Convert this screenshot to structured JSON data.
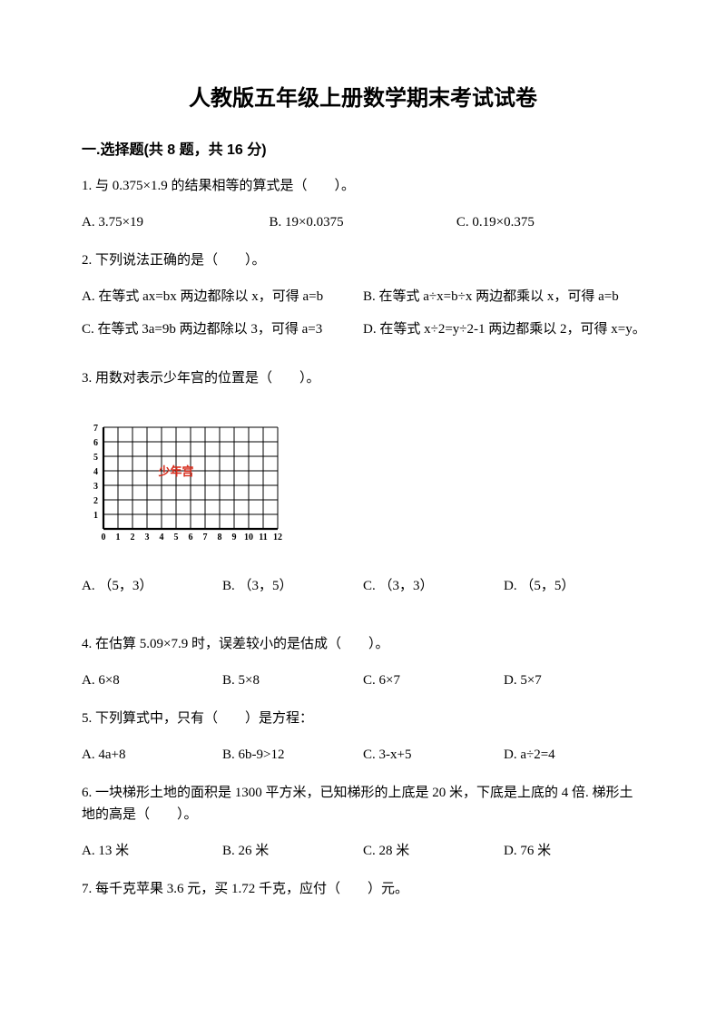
{
  "title": "人教版五年级上册数学期末考试试卷",
  "section1": {
    "heading": "一.选择题(共 8 题，共 16 分)",
    "q1": {
      "text": "1. 与 0.375×1.9 的结果相等的算式是（　　）。",
      "a": "A. 3.75×19",
      "b": "B. 19×0.0375",
      "c": "C. 0.19×0.375"
    },
    "q2": {
      "text": "2. 下列说法正确的是（　　）。",
      "a": "A. 在等式 ax=bx 两边都除以 x，可得 a=b",
      "b": "B. 在等式 a÷x=b÷x 两边都乘以 x，可得 a=b",
      "c": "C. 在等式 3a=9b 两边都除以 3，可得 a=3",
      "d": "D. 在等式 x÷2=y÷2-1 两边都乘以 2，可得 x=y。"
    },
    "q3": {
      "text": "3. 用数对表示少年宫的位置是（　　）。",
      "grid": {
        "x_ticks": [
          0,
          1,
          2,
          3,
          4,
          5,
          6,
          7,
          8,
          9,
          10,
          11,
          12
        ],
        "y_ticks": [
          1,
          2,
          3,
          4,
          5,
          6,
          7
        ],
        "cell": 16,
        "width_cells": 12,
        "height_cells": 7,
        "origin_x": 24,
        "label_text": "少年宫",
        "label_color": "#d62a1a",
        "label_cell_x": 5,
        "label_cell_y": 4,
        "axis_color": "#000000",
        "grid_color": "#000000",
        "tick_font_size": 10
      },
      "a": "A. （5，3）",
      "b": "B. （3，5）",
      "c": "C. （3，3）",
      "d": "D. （5，5）"
    },
    "q4": {
      "text": "4. 在估算 5.09×7.9 时，误差较小的是估成（　　）。",
      "a": "A. 6×8",
      "b": "B. 5×8",
      "c": "C. 6×7",
      "d": "D. 5×7"
    },
    "q5": {
      "text": "5. 下列算式中，只有（　　）是方程：",
      "a": "A. 4a+8",
      "b": "B. 6b-9>12",
      "c": "C. 3-x+5",
      "d": "D. a÷2=4"
    },
    "q6": {
      "text": "6. 一块梯形土地的面积是 1300 平方米，已知梯形的上底是 20 米，下底是上底的 4 倍. 梯形土地的高是（　　）。",
      "a": "A. 13 米",
      "b": "B. 26 米",
      "c": "C. 28 米",
      "d": "D. 76 米"
    },
    "q7": {
      "text": "7. 每千克苹果 3.6 元，买 1.72 千克，应付（　　）元。"
    }
  }
}
